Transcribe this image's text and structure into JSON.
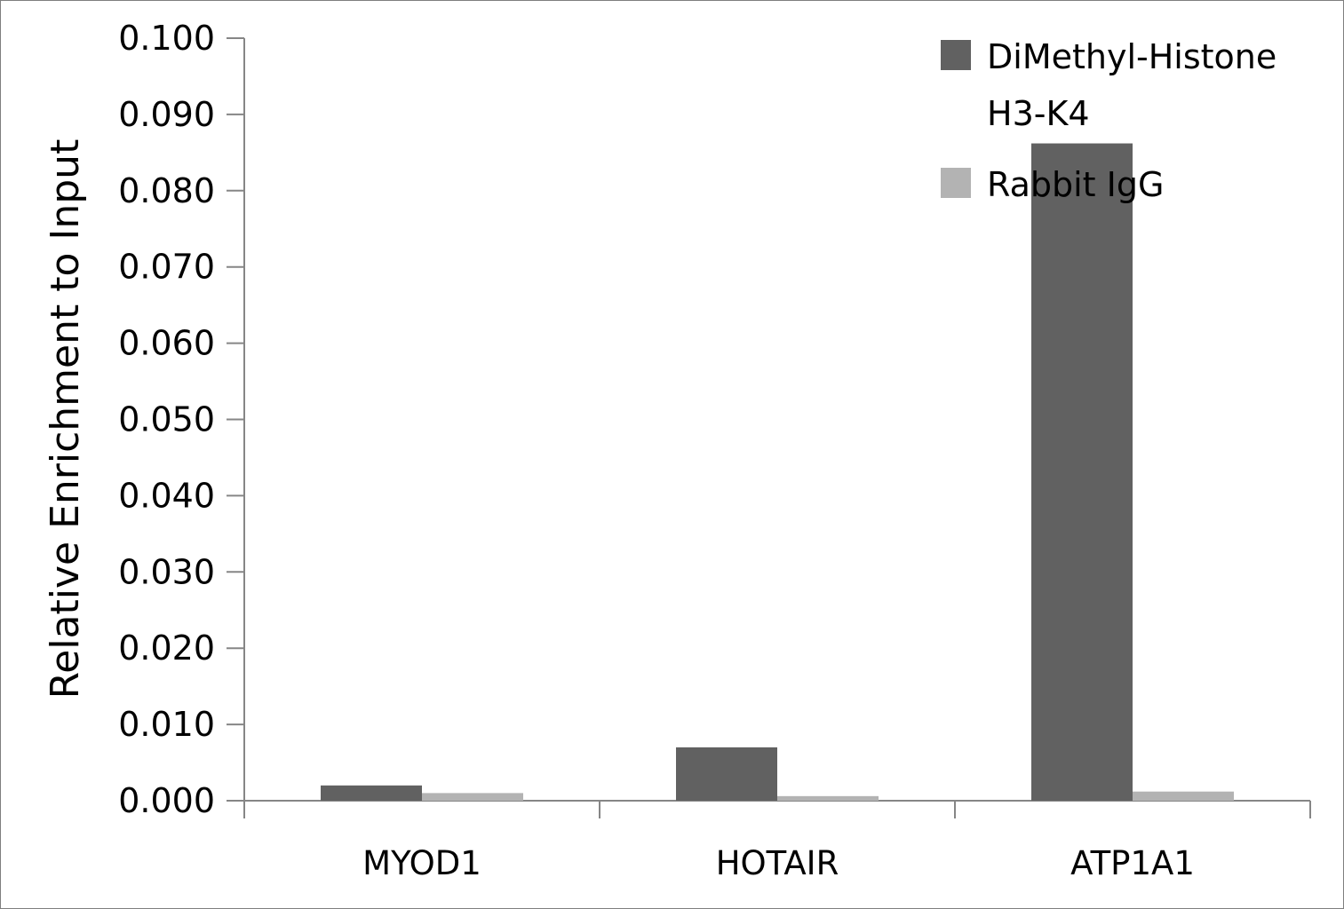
{
  "chart_data": {
    "type": "bar",
    "title": "",
    "xlabel": "",
    "ylabel": "Relative Enrichment to Input",
    "ylim": [
      0,
      0.1
    ],
    "ytick_step": 0.01,
    "ytick_labels": [
      "0.000",
      "0.010",
      "0.020",
      "0.030",
      "0.040",
      "0.050",
      "0.060",
      "0.070",
      "0.080",
      "0.090",
      "0.100"
    ],
    "categories": [
      "MYOD1",
      "HOTAIR",
      "ATP1A1"
    ],
    "series": [
      {
        "name": "DiMethyl-Histone H3-K4",
        "legend_lines": [
          "DiMethyl-Histone",
          "H3-K4"
        ],
        "color": "#616161",
        "values": [
          0.002,
          0.007,
          0.0862
        ]
      },
      {
        "name": "Rabbit IgG",
        "legend_lines": [
          "Rabbit IgG"
        ],
        "color": "#b3b3b3",
        "values": [
          0.001,
          0.0006,
          0.0012
        ]
      }
    ],
    "grid": false,
    "legend_position": "top-right",
    "axis_color": "#868686"
  }
}
